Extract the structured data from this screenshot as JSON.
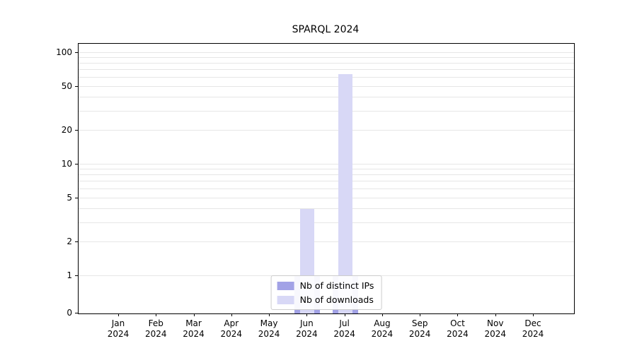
{
  "chart_data": {
    "type": "bar",
    "title": "SPARQL 2024",
    "categories": [
      "Jan",
      "Feb",
      "Mar",
      "Apr",
      "May",
      "Jun",
      "Jul",
      "Aug",
      "Sep",
      "Oct",
      "Nov",
      "Dec"
    ],
    "year": "2024",
    "series": [
      {
        "name": "Nb of distinct IPs",
        "color": "#a2a2e6",
        "values": [
          0,
          0,
          0,
          0,
          0,
          1,
          1,
          0,
          0,
          0,
          0,
          0
        ]
      },
      {
        "name": "Nb of downloads",
        "color": "#d8d8f6",
        "values": [
          0,
          0,
          0,
          0,
          0,
          4,
          65,
          0,
          0,
          0,
          0,
          0
        ]
      }
    ],
    "yticks": [
      0,
      1,
      2,
      5,
      10,
      20,
      50,
      100
    ],
    "scale": "symlog",
    "ylim": [
      0,
      120
    ],
    "grid": true,
    "legend_position": "lower center"
  }
}
